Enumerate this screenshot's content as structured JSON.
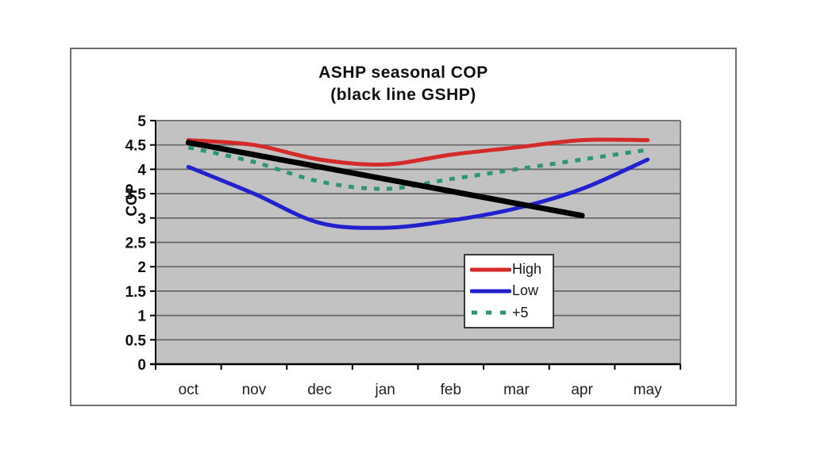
{
  "title": {
    "line1": "ASHP seasonal COP",
    "line2": "(black line GSHP)"
  },
  "chart_data": {
    "type": "line",
    "title": "ASHP seasonal COP (black line GSHP)",
    "categories": [
      "oct",
      "nov",
      "dec",
      "jan",
      "feb",
      "mar",
      "apr",
      "may"
    ],
    "series": [
      {
        "name": "High",
        "color": "#d42a2a",
        "style": "solid",
        "width": 5,
        "in_legend": true,
        "values": [
          4.6,
          4.5,
          4.2,
          4.1,
          4.3,
          4.45,
          4.6,
          4.6
        ]
      },
      {
        "name": "Low",
        "color": "#2121cd",
        "style": "solid",
        "width": 5,
        "in_legend": true,
        "values": [
          4.05,
          3.5,
          2.9,
          2.8,
          2.95,
          3.2,
          3.6,
          4.2
        ]
      },
      {
        "name": "+5",
        "color": "#2e9673",
        "style": "dashed",
        "width": 5,
        "in_legend": true,
        "values": [
          4.45,
          4.15,
          3.75,
          3.6,
          3.8,
          4.0,
          4.2,
          4.4
        ]
      },
      {
        "name": "GSHP",
        "color": "#000000",
        "style": "solid",
        "width": 7,
        "in_legend": false,
        "values": [
          4.55,
          4.3,
          4.05,
          3.8,
          3.55,
          3.3,
          3.05,
          null
        ]
      }
    ],
    "xlabel": "",
    "ylabel": "COP",
    "ylim": [
      0,
      5
    ],
    "ytick_step": 0.5,
    "ytick_labels": [
      "0",
      "0.5",
      "1",
      "1.5",
      "2",
      "2.5",
      "3",
      "3.5",
      "4",
      "4.5",
      "5"
    ],
    "grid": true,
    "legend_position": "inside-right",
    "plot_background": "#c2c2c2",
    "gridline_color": "#666666",
    "axis_color": "#000000"
  }
}
